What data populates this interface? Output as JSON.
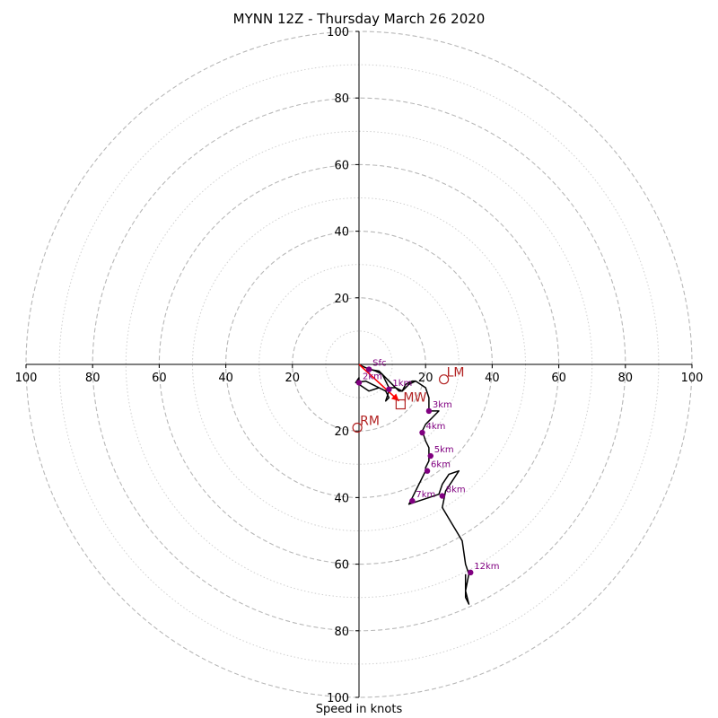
{
  "chart_data": {
    "type": "hodograph",
    "title": "MYNN 12Z - Thursday March 26 2020",
    "xlabel": "Speed in knots",
    "xlim": [
      -100,
      100
    ],
    "ylim": [
      -100,
      100
    ],
    "x_tick_labels": [
      "100",
      "80",
      "60",
      "40",
      "20",
      "20",
      "40",
      "60",
      "80",
      "100"
    ],
    "y_tick_labels": [
      "100",
      "80",
      "60",
      "40",
      "20",
      "20",
      "40",
      "60",
      "80",
      "100"
    ],
    "rings_dashed": [
      20,
      40,
      60,
      80,
      100
    ],
    "rings_dotted": [
      10,
      30,
      50,
      70,
      90
    ],
    "trace_color": "#000000",
    "marker_color": "#800080",
    "motion_color": "#b22222",
    "trace": [
      [
        3,
        -1.5
      ],
      [
        6,
        -2
      ],
      [
        8,
        -4
      ],
      [
        10,
        -6
      ],
      [
        12,
        -8
      ],
      [
        13,
        -8
      ],
      [
        15,
        -6
      ],
      [
        17,
        -5
      ],
      [
        20,
        -7
      ],
      [
        21,
        -10
      ],
      [
        21,
        -14
      ],
      [
        24,
        -14
      ],
      [
        22,
        -16
      ],
      [
        20,
        -18
      ],
      [
        19,
        -20
      ],
      [
        20,
        -23
      ],
      [
        21,
        -25
      ],
      [
        21,
        -27
      ],
      [
        21,
        -29
      ],
      [
        20,
        -31
      ],
      [
        20,
        -32
      ],
      [
        18,
        -36
      ],
      [
        17,
        -38
      ],
      [
        16,
        -40
      ],
      [
        15,
        -42
      ],
      [
        18,
        -41
      ],
      [
        21,
        -40
      ],
      [
        24,
        -39
      ],
      [
        25,
        -36
      ],
      [
        27,
        -33
      ],
      [
        30,
        -32
      ],
      [
        28,
        -35
      ],
      [
        26,
        -38
      ],
      [
        25,
        -43
      ],
      [
        28,
        -48
      ],
      [
        31,
        -53
      ],
      [
        32,
        -60
      ],
      [
        33,
        -63
      ],
      [
        32,
        -68
      ],
      [
        33,
        -72
      ],
      [
        32,
        -70
      ],
      [
        32,
        -68
      ],
      [
        32,
        -63
      ]
    ],
    "trace_low": [
      [
        0,
        0
      ],
      [
        2,
        -1
      ],
      [
        5,
        -2
      ],
      [
        7,
        -3
      ],
      [
        8,
        -5
      ],
      [
        9,
        -7
      ],
      [
        9,
        -8
      ],
      [
        8,
        -11
      ],
      [
        9,
        -10
      ],
      [
        8,
        -8
      ],
      [
        6,
        -7
      ],
      [
        3,
        -8
      ],
      [
        0,
        -6
      ],
      [
        0,
        -5
      ],
      [
        0,
        -4
      ],
      [
        -1,
        -5.5
      ],
      [
        2,
        -5
      ],
      [
        4,
        -6
      ],
      [
        6,
        -7
      ],
      [
        8,
        -8
      ],
      [
        9,
        -7
      ],
      [
        11,
        -7
      ],
      [
        13,
        -8
      ],
      [
        14,
        -6
      ],
      [
        16,
        -5
      ],
      [
        17,
        -5
      ]
    ],
    "height_points": [
      {
        "label": "Sfc",
        "u": 3,
        "v": -1.5
      },
      {
        "label": "1km",
        "u": 9,
        "v": -7.5
      },
      {
        "label": "2km",
        "u": 0,
        "v": -5.5
      },
      {
        "label": "3km",
        "u": 21,
        "v": -14
      },
      {
        "label": "4km",
        "u": 19,
        "v": -20.5
      },
      {
        "label": "5km",
        "u": 21.5,
        "v": -27.5
      },
      {
        "label": "6km",
        "u": 20.5,
        "v": -32
      },
      {
        "label": "7km",
        "u": 16,
        "v": -41
      },
      {
        "label": "8km",
        "u": 25,
        "v": -39.5
      },
      {
        "label": "12km",
        "u": 33.5,
        "v": -62.5
      }
    ],
    "storm_motion": {
      "LM": {
        "label": "LM",
        "u": 25.5,
        "v": -4.5
      },
      "MW": {
        "label": "MW",
        "u": 12.5,
        "v": -12
      },
      "RM": {
        "label": "RM",
        "u": -0.5,
        "v": -19
      }
    },
    "shear_arrow": {
      "from": [
        0,
        0
      ],
      "to": [
        12,
        -11
      ]
    }
  }
}
